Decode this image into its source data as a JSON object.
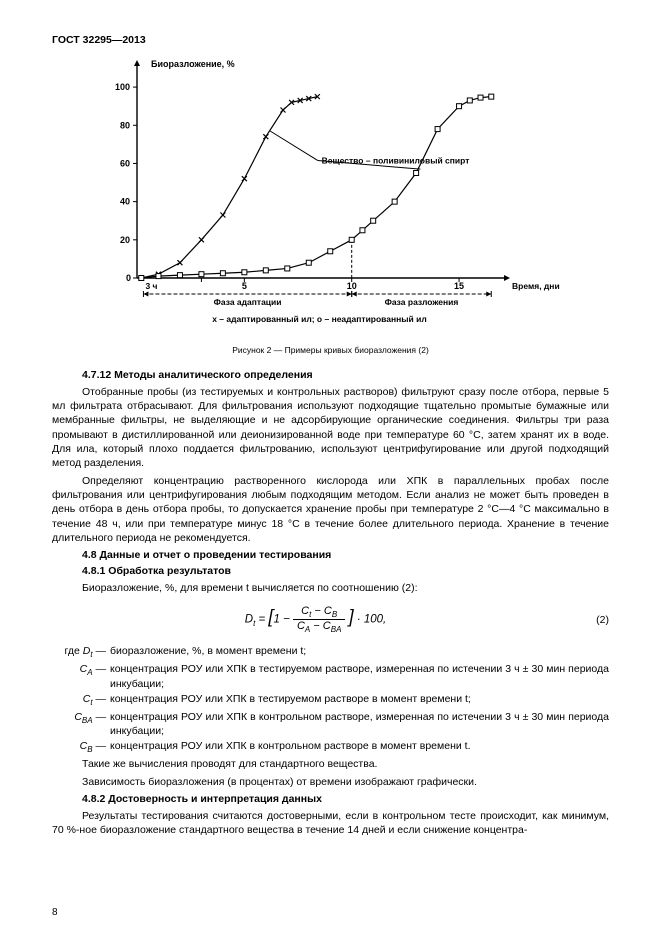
{
  "gost": "ГОСТ 32295—2013",
  "chart": {
    "ylabel": "Биоразложение, %",
    "xlabel": "Время, дни",
    "ylim": [
      0,
      110
    ],
    "xlim": [
      0,
      17
    ],
    "yticks": [
      0,
      20,
      40,
      60,
      80,
      100
    ],
    "xticks": [
      3,
      5,
      10,
      15
    ],
    "xtick_label_3": "3 ч",
    "annotation": "Вещество – поливиниловый спирт",
    "phase1": "Фаза адаптации",
    "phase2": "Фаза разложения",
    "legend": "x – адаптированный ил;  o – неадаптированный ил",
    "series_x": {
      "marker": "x",
      "points": [
        [
          0.2,
          0
        ],
        [
          1,
          2
        ],
        [
          2,
          8
        ],
        [
          3,
          20
        ],
        [
          4,
          33
        ],
        [
          5,
          52
        ],
        [
          6,
          74
        ],
        [
          6.8,
          88
        ],
        [
          7.2,
          92
        ],
        [
          7.6,
          93
        ],
        [
          8,
          94
        ],
        [
          8.4,
          95
        ]
      ]
    },
    "series_o": {
      "marker": "o",
      "points": [
        [
          0.2,
          0
        ],
        [
          1,
          1
        ],
        [
          2,
          1.5
        ],
        [
          3,
          2
        ],
        [
          4,
          2.5
        ],
        [
          5,
          3
        ],
        [
          6,
          4
        ],
        [
          7,
          5
        ],
        [
          8,
          8
        ],
        [
          9,
          14
        ],
        [
          10,
          20
        ],
        [
          10.5,
          25
        ],
        [
          11,
          30
        ],
        [
          12,
          40
        ],
        [
          13,
          55
        ],
        [
          14,
          78
        ],
        [
          15,
          90
        ],
        [
          15.5,
          93
        ],
        [
          16,
          94.5
        ],
        [
          16.5,
          95
        ]
      ]
    },
    "colors": {
      "line": "#000",
      "bg": "#fff",
      "text": "#000"
    },
    "line_width": 1.2,
    "font_size_axis": 9
  },
  "caption": "Рисунок 2 — Примеры кривых биоразложения (2)",
  "s4712_title": "4.7.12 Методы аналитического определения",
  "p1": "Отобранные пробы (из тестируемых и контрольных растворов) фильтруют сразу после отбора, первые 5 мл фильтрата отбрасывают. Для фильтрования используют подходящие тщательно промытые бумажные или мембранные фильтры, не выделяющие и не адсорбирующие органические соединения. Фильтры три раза промывают в дистиллированной или деионизированной воде при температуре 60 °С, затем хранят их в воде. Для ила, который плохо поддается фильтрованию, используют центрифугирование или другой подходящий метод разделения.",
  "p2": "Определяют концентрацию растворенного кислорода или ХПК в параллельных пробах после фильтрования или центрифугирования любым подходящим методом. Если анализ не может быть проведен в день отбора в день отбора пробы, то допускается хранение пробы при температуре 2 °С—4 °С максимально в течение 48 ч, или при температуре минус 18 °С в течение более длительного периода. Хранение в течение длительного периода не рекомендуется.",
  "s48_title": "4.8 Данные и отчет о проведении тестирования",
  "s481_title": "4.8.1 Обработка результатов",
  "p3": "Биоразложение, %, для времени t вычисляется по соотношению (2):",
  "formula_num": "(2)",
  "where_intro": "где",
  "w_Dt": "биоразложение, %, в момент времени t;",
  "w_CA": "концентрация РОУ или ХПК в тестируемом растворе, измеренная по истечении 3 ч ± 30 мин периода инкубации;",
  "w_Ct": "концентрация РОУ или ХПК в тестируемом растворе в момент времени t;",
  "w_CBA": "концентрация РОУ или ХПК в контрольном растворе, измеренная по истечении 3 ч ± 30 мин периода инкубации;",
  "w_CB": "концентрация РОУ или ХПК в контрольном растворе в момент времени t.",
  "p4": "Такие же вычисления проводят для стандартного вещества.",
  "p5": "Зависимость биоразложения (в процентах) от времени изображают графически.",
  "s482_title": "4.8.2 Достоверность и интерпретация данных",
  "p6": "Результаты тестирования считаются достоверными, если в контрольном тесте происходит, как минимум, 70 %-ное биоразложение стандартного вещества в течение 14 дней и если снижение концентра-",
  "page_num": "8"
}
